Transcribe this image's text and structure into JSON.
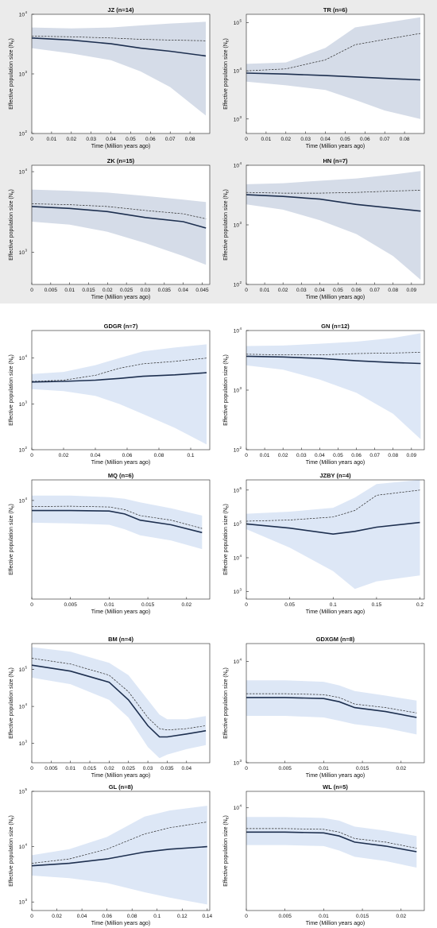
{
  "colors": {
    "band_background": [
      "#ebebeb",
      "#ffffff",
      "#ffffff"
    ],
    "plot_background": [
      "#ffffff",
      "#ffffff",
      "#ffffff"
    ],
    "ci_band": [
      "#d5dce8",
      "#dde7f6",
      "#dde7f6"
    ],
    "median_line": "#1d2f4f",
    "mean_line": "#2b2b2b"
  },
  "common": {
    "ylabel": "Effective population size (N",
    "ylabel_sub": "e",
    "ylabel_end": ")",
    "xlabel": "Time (Million years ago)"
  },
  "chart_data": [
    {
      "type": "area",
      "title": "JZ (n=14)",
      "ylog": true,
      "ylim": [
        100,
        10000
      ],
      "yticks": [
        {
          "v": 100,
          "l": "10",
          "e": "2"
        },
        {
          "v": 1000,
          "l": "10",
          "e": "3"
        },
        {
          "v": 10000,
          "l": "10",
          "e": "4"
        }
      ],
      "xlim": [
        0,
        0.09
      ],
      "xticks": [
        "0",
        "0.01",
        "0.02",
        "0.03",
        "0.04",
        "0.05",
        "0.06",
        "0.07",
        "0.08"
      ],
      "xtick_values": [
        0,
        0.01,
        0.02,
        0.03,
        0.04,
        0.05,
        0.06,
        0.07,
        0.08
      ],
      "x": [
        0,
        0.02,
        0.04,
        0.055,
        0.07,
        0.088
      ],
      "median": [
        4000,
        3700,
        3200,
        2700,
        2400,
        2000
      ],
      "mean": [
        4300,
        4200,
        4000,
        3800,
        3700,
        3600
      ],
      "upper": [
        6000,
        5800,
        6000,
        6500,
        7000,
        7500
      ],
      "lower": [
        2700,
        2200,
        1700,
        1100,
        600,
        200
      ]
    },
    {
      "type": "area",
      "title": "TR (n=6)",
      "ylog": true,
      "ylim": [
        500,
        150000
      ],
      "yticks": [
        {
          "v": 1000,
          "l": "10",
          "e": "3"
        },
        {
          "v": 10000,
          "l": "10",
          "e": "4"
        },
        {
          "v": 100000,
          "l": "10",
          "e": "5"
        }
      ],
      "xlim": [
        0,
        0.09
      ],
      "xticks": [
        "0",
        "0.01",
        "0.02",
        "0.03",
        "0.04",
        "0.05",
        "0.06",
        "0.07",
        "0.08"
      ],
      "xtick_values": [
        0,
        0.01,
        0.02,
        0.03,
        0.04,
        0.05,
        0.06,
        0.07,
        0.08
      ],
      "x": [
        0,
        0.02,
        0.04,
        0.055,
        0.07,
        0.088
      ],
      "median": [
        9000,
        8600,
        8000,
        7500,
        7000,
        6500
      ],
      "mean": [
        10000,
        11000,
        17000,
        35000,
        45000,
        60000
      ],
      "upper": [
        14000,
        15000,
        30000,
        80000,
        100000,
        130000
      ],
      "lower": [
        6000,
        5000,
        4000,
        2500,
        1500,
        1000
      ]
    },
    {
      "type": "area",
      "title": "ZK (n=15)",
      "ylog": true,
      "ylim": [
        400,
        12000
      ],
      "yticks": [
        {
          "v": 1000,
          "l": "10",
          "e": "3"
        },
        {
          "v": 10000,
          "l": "10",
          "e": "4"
        }
      ],
      "xlim": [
        0,
        0.047
      ],
      "xticks": [
        "0",
        "0.005",
        "0.01",
        "0.015",
        "0.02",
        "0.025",
        "0.03",
        "0.035",
        "0.04",
        "0.045"
      ],
      "xtick_values": [
        0,
        0.005,
        0.01,
        0.015,
        0.02,
        0.025,
        0.03,
        0.035,
        0.04,
        0.045
      ],
      "x": [
        0,
        0.01,
        0.02,
        0.03,
        0.04,
        0.046
      ],
      "median": [
        3700,
        3500,
        3200,
        2700,
        2400,
        2000
      ],
      "mean": [
        4000,
        3900,
        3700,
        3300,
        3000,
        2600
      ],
      "upper": [
        6000,
        5800,
        5500,
        5000,
        4500,
        4200
      ],
      "lower": [
        2400,
        2200,
        1800,
        1300,
        900,
        700
      ]
    },
    {
      "type": "area",
      "title": "HN (n=7)",
      "ylog": true,
      "ylim": [
        100,
        10000
      ],
      "yticks": [
        {
          "v": 100,
          "l": "10",
          "e": "2"
        },
        {
          "v": 1000,
          "l": "10",
          "e": "3"
        },
        {
          "v": 10000,
          "l": "10",
          "e": "4"
        }
      ],
      "xlim": [
        0,
        0.097
      ],
      "xticks": [
        "0",
        "0.01",
        "0.02",
        "0.03",
        "0.04",
        "0.05",
        "0.06",
        "0.07",
        "0.08",
        "0.09"
      ],
      "xtick_values": [
        0,
        0.01,
        0.02,
        0.03,
        0.04,
        0.05,
        0.06,
        0.07,
        0.08,
        0.09
      ],
      "x": [
        0,
        0.02,
        0.04,
        0.06,
        0.08,
        0.095
      ],
      "median": [
        3200,
        3000,
        2700,
        2200,
        1900,
        1700
      ],
      "mean": [
        3500,
        3400,
        3400,
        3500,
        3700,
        3800
      ],
      "upper": [
        4800,
        5000,
        5500,
        6000,
        7000,
        8000
      ],
      "lower": [
        2200,
        1800,
        1200,
        700,
        300,
        120
      ]
    },
    {
      "type": "area",
      "title": "GDGR (n=7)",
      "ylog": true,
      "ylim": [
        100,
        40000
      ],
      "yticks": [
        {
          "v": 100,
          "l": "10",
          "e": "2"
        },
        {
          "v": 1000,
          "l": "10",
          "e": "3"
        },
        {
          "v": 10000,
          "l": "10",
          "e": "4"
        }
      ],
      "xlim": [
        0,
        0.112
      ],
      "xticks": [
        "0",
        "0.02",
        "0.04",
        "0.06",
        "0.08",
        "0.1"
      ],
      "xtick_values": [
        0,
        0.02,
        0.04,
        0.06,
        0.08,
        0.1
      ],
      "x": [
        0,
        0.02,
        0.04,
        0.055,
        0.07,
        0.09,
        0.11
      ],
      "median": [
        3000,
        3100,
        3300,
        3600,
        4000,
        4300,
        4800
      ],
      "mean": [
        3100,
        3300,
        4200,
        6000,
        7500,
        8500,
        10000
      ],
      "upper": [
        4500,
        5000,
        7000,
        10000,
        14000,
        17000,
        20000
      ],
      "lower": [
        2100,
        1900,
        1500,
        1000,
        600,
        300,
        130
      ]
    },
    {
      "type": "area",
      "title": "GN (n=12)",
      "ylog": true,
      "ylim": [
        100,
        10000
      ],
      "yticks": [
        {
          "v": 100,
          "l": "10",
          "e": "2"
        },
        {
          "v": 1000,
          "l": "10",
          "e": "3"
        },
        {
          "v": 10000,
          "l": "10",
          "e": "4"
        }
      ],
      "xlim": [
        0,
        0.097
      ],
      "xticks": [
        "0",
        "0.01",
        "0.02",
        "0.03",
        "0.04",
        "0.05",
        "0.06",
        "0.07",
        "0.08",
        "0.09"
      ],
      "xtick_values": [
        0,
        0.01,
        0.02,
        0.03,
        0.04,
        0.05,
        0.06,
        0.07,
        0.08,
        0.09
      ],
      "x": [
        0,
        0.02,
        0.04,
        0.06,
        0.08,
        0.095
      ],
      "median": [
        3700,
        3600,
        3400,
        3100,
        2900,
        2800
      ],
      "mean": [
        4000,
        3900,
        3900,
        4100,
        4200,
        4300
      ],
      "upper": [
        5500,
        5600,
        6000,
        6500,
        7500,
        9000
      ],
      "lower": [
        2600,
        2200,
        1500,
        900,
        400,
        150
      ]
    },
    {
      "type": "area",
      "title": "MQ (n=6)",
      "ylog": true,
      "ylim": [
        600,
        18000
      ],
      "yticks": [
        {
          "v": 10000,
          "l": "10",
          "e": "4"
        }
      ],
      "xlim": [
        0,
        0.023
      ],
      "xticks": [
        "0",
        "0.005",
        "0.01",
        "0.015",
        "0.02"
      ],
      "xtick_values": [
        0,
        0.005,
        0.01,
        0.015,
        0.02
      ],
      "x": [
        0,
        0.005,
        0.01,
        0.012,
        0.014,
        0.018,
        0.022
      ],
      "median": [
        7500,
        7500,
        7400,
        6800,
        5700,
        5000,
        4000
      ],
      "mean": [
        8400,
        8500,
        8300,
        7700,
        6500,
        5700,
        4500
      ],
      "upper": [
        11500,
        11500,
        11000,
        10500,
        9500,
        8000,
        6500
      ],
      "lower": [
        5300,
        5200,
        5000,
        4400,
        3700,
        3200,
        2500
      ]
    },
    {
      "type": "area",
      "title": "JZBY (n=4)",
      "ylog": true,
      "ylim": [
        600,
        2000000
      ],
      "yticks": [
        {
          "v": 1000,
          "l": "10",
          "e": "3"
        },
        {
          "v": 10000,
          "l": "10",
          "e": "4"
        },
        {
          "v": 100000,
          "l": "10",
          "e": "5"
        },
        {
          "v": 1000000,
          "l": "10",
          "e": "6"
        }
      ],
      "xlim": [
        0,
        0.205
      ],
      "xticks": [
        "0",
        "0.05",
        "0.1",
        "0.15",
        "0.2"
      ],
      "xtick_values": [
        0,
        0.05,
        0.1,
        0.15,
        0.2
      ],
      "x": [
        0,
        0.05,
        0.1,
        0.125,
        0.15,
        0.2
      ],
      "median": [
        100000,
        75000,
        50000,
        60000,
        80000,
        110000
      ],
      "mean": [
        120000,
        130000,
        160000,
        250000,
        700000,
        1000000
      ],
      "upper": [
        200000,
        230000,
        300000,
        600000,
        1500000,
        2000000
      ],
      "lower": [
        70000,
        20000,
        4000,
        1200,
        2000,
        3000
      ]
    },
    {
      "type": "area",
      "title": "BM (n=4)",
      "ylog": true,
      "ylim": [
        300,
        500000
      ],
      "yticks": [
        {
          "v": 1000,
          "l": "10",
          "e": "3"
        },
        {
          "v": 10000,
          "l": "10",
          "e": "4"
        },
        {
          "v": 100000,
          "l": "10",
          "e": "5"
        }
      ],
      "xlim": [
        0,
        0.046
      ],
      "xticks": [
        "0",
        "0.005",
        "0.01",
        "0.015",
        "0.02",
        "0.025",
        "0.03",
        "0.035",
        "0.04"
      ],
      "xtick_values": [
        0,
        0.005,
        0.01,
        0.015,
        0.02,
        0.025,
        0.03,
        0.035,
        0.04
      ],
      "x": [
        0,
        0.01,
        0.02,
        0.025,
        0.03,
        0.033,
        0.035,
        0.04,
        0.045
      ],
      "median": [
        130000,
        90000,
        45000,
        15000,
        3000,
        1500,
        1500,
        1800,
        2200
      ],
      "mean": [
        200000,
        140000,
        70000,
        25000,
        5000,
        2500,
        2300,
        2500,
        3000
      ],
      "upper": [
        400000,
        300000,
        150000,
        70000,
        15000,
        6000,
        4500,
        4500,
        5500
      ],
      "lower": [
        60000,
        40000,
        15000,
        5000,
        800,
        400,
        500,
        700,
        900
      ]
    },
    {
      "type": "area",
      "title": "GDXGM (n=8)",
      "ylog": true,
      "ylim": [
        1000,
        15000
      ],
      "yticks": [
        {
          "v": 1000,
          "l": "10",
          "e": "3"
        },
        {
          "v": 10000,
          "l": "10",
          "e": "4"
        }
      ],
      "xlim": [
        0,
        0.023
      ],
      "xticks": [
        "0",
        "0.005",
        "0.01",
        "0.015",
        "0.02"
      ],
      "xtick_values": [
        0,
        0.005,
        0.01,
        0.015,
        0.02
      ],
      "x": [
        0,
        0.005,
        0.01,
        0.012,
        0.014,
        0.018,
        0.022
      ],
      "median": [
        4400,
        4400,
        4300,
        4000,
        3500,
        3200,
        2800
      ],
      "mean": [
        4800,
        4800,
        4700,
        4400,
        3800,
        3500,
        3100
      ],
      "upper": [
        6500,
        6500,
        6300,
        5800,
        5100,
        4600,
        4100
      ],
      "lower": [
        2900,
        2900,
        2800,
        2600,
        2400,
        2200,
        1900
      ]
    },
    {
      "type": "area",
      "title": "GL (n=8)",
      "ylog": true,
      "ylim": [
        700,
        100000
      ],
      "yticks": [
        {
          "v": 1000,
          "l": "10",
          "e": "3"
        },
        {
          "v": 10000,
          "l": "10",
          "e": "4"
        },
        {
          "v": 100000,
          "l": "10",
          "e": "5"
        }
      ],
      "xlim": [
        0,
        0.142
      ],
      "xticks": [
        "0",
        "0.02",
        "0.04",
        "0.06",
        "0.08",
        "0.1",
        "0.12",
        "0.14"
      ],
      "xtick_values": [
        0,
        0.02,
        0.04,
        0.06,
        0.08,
        0.1,
        0.12,
        0.14
      ],
      "x": [
        0,
        0.03,
        0.06,
        0.09,
        0.11,
        0.14
      ],
      "median": [
        4500,
        5000,
        6000,
        8000,
        9000,
        10000
      ],
      "mean": [
        5000,
        6000,
        9000,
        17000,
        22000,
        28000
      ],
      "upper": [
        7000,
        9000,
        15000,
        35000,
        45000,
        55000
      ],
      "lower": [
        3000,
        2700,
        2200,
        1500,
        1200,
        900
      ]
    },
    {
      "type": "area",
      "title": "WL (n=5)",
      "ylog": true,
      "ylim": [
        800,
        15000
      ],
      "yticks": [
        {
          "v": 10000,
          "l": "10",
          "e": "4"
        }
      ],
      "xlim": [
        0,
        0.023
      ],
      "xticks": [
        "0",
        "0.005",
        "0.01",
        "0.015",
        "0.02"
      ],
      "xtick_values": [
        0,
        0.005,
        0.01,
        0.015,
        0.02
      ],
      "x": [
        0,
        0.005,
        0.01,
        0.012,
        0.014,
        0.018,
        0.022
      ],
      "median": [
        5500,
        5500,
        5400,
        5000,
        4300,
        3900,
        3400
      ],
      "mean": [
        6000,
        6000,
        5900,
        5500,
        4700,
        4300,
        3700
      ],
      "upper": [
        8000,
        8000,
        7800,
        7300,
        6300,
        5700,
        5000
      ],
      "lower": [
        4000,
        4000,
        3900,
        3500,
        3000,
        2700,
        2300
      ]
    }
  ]
}
